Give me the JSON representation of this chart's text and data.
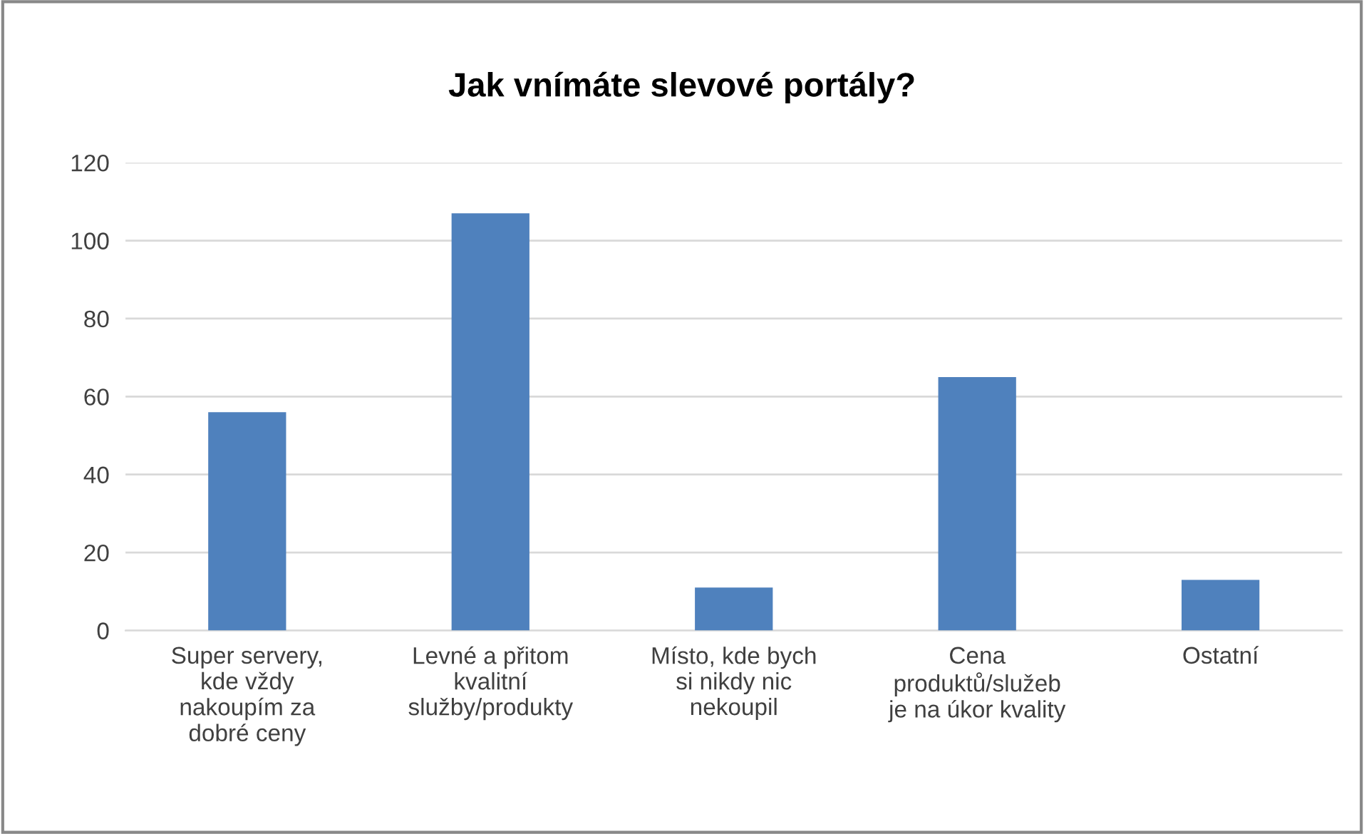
{
  "chart_data": {
    "type": "bar",
    "title": "Jak vnímáte slevové portály?",
    "categories": [
      "Super servery,\nkde vždy\nnakoupím za\ndobré ceny",
      "Levné a přitom\nkvalitní\nslužby/produkty",
      "Místo, kde bych\nsi nikdy nic\nnekoupil",
      "Cena\nproduktů/služeb\nje na úkor kvality",
      "Ostatní"
    ],
    "values": [
      56,
      107,
      11,
      65,
      13
    ],
    "color": "#4f81bd",
    "ylim": [
      0,
      120
    ],
    "yticks": [
      0,
      20,
      40,
      60,
      80,
      100,
      120
    ],
    "grid": "y"
  }
}
